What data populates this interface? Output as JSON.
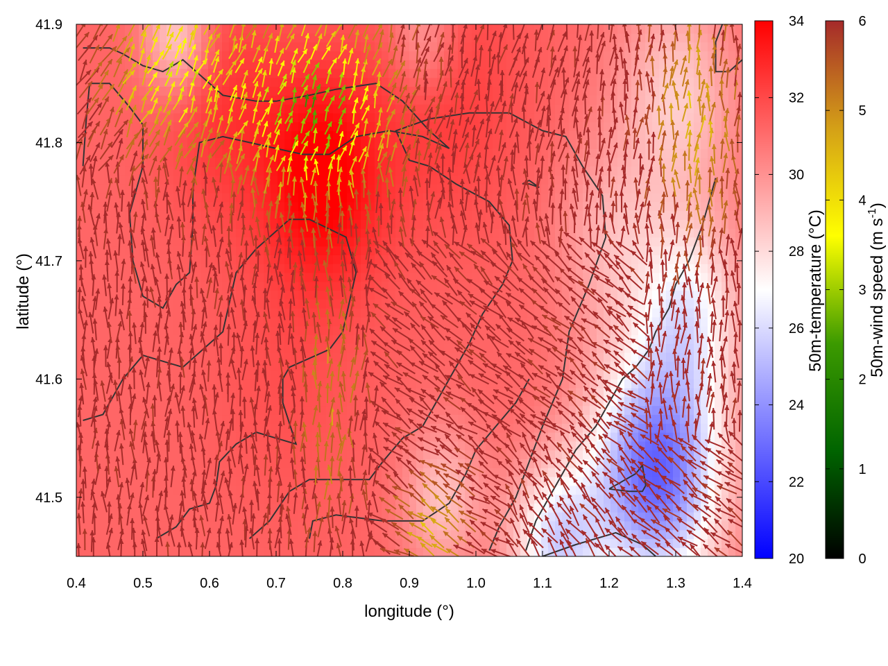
{
  "chart_data": {
    "type": "heatmap",
    "title": "",
    "xlabel": "longitude (°)",
    "ylabel": "latitude (°)",
    "xlim": [
      0.4,
      1.4
    ],
    "ylim": [
      41.45,
      41.9
    ],
    "x_ticks": [
      {
        "value": 0.4,
        "label": "0.4"
      },
      {
        "value": 0.5,
        "label": "0.5"
      },
      {
        "value": 0.6,
        "label": "0.6"
      },
      {
        "value": 0.7,
        "label": "0.7"
      },
      {
        "value": 0.8,
        "label": "0.8"
      },
      {
        "value": 0.9,
        "label": "0.9"
      },
      {
        "value": 1.0,
        "label": "1.0"
      },
      {
        "value": 1.1,
        "label": "1.1"
      },
      {
        "value": 1.2,
        "label": "1.2"
      },
      {
        "value": 1.3,
        "label": "1.3"
      },
      {
        "value": 1.4,
        "label": "1.4"
      }
    ],
    "y_ticks": [
      {
        "value": 41.5,
        "label": "41.5"
      },
      {
        "value": 41.6,
        "label": "41.6"
      },
      {
        "value": 41.7,
        "label": "41.7"
      },
      {
        "value": 41.8,
        "label": "41.8"
      },
      {
        "value": 41.9,
        "label": "41.9"
      }
    ],
    "temperature_colorbar": {
      "label": "50m-temperature (°C)",
      "range": [
        20,
        34
      ],
      "ticks": [
        {
          "value": 20,
          "label": "20"
        },
        {
          "value": 22,
          "label": "22"
        },
        {
          "value": 24,
          "label": "24"
        },
        {
          "value": 26,
          "label": "26"
        },
        {
          "value": 28,
          "label": "28"
        },
        {
          "value": 30,
          "label": "30"
        },
        {
          "value": 32,
          "label": "32"
        },
        {
          "value": 34,
          "label": "34"
        }
      ],
      "colors": [
        "#0000ff",
        "#ffffff",
        "#ff0000"
      ]
    },
    "wind_colorbar": {
      "label_main": "50m-wind speed (m s",
      "label_sup": "-1",
      "label_end": ")",
      "range": [
        0,
        6
      ],
      "ticks": [
        {
          "value": 0,
          "label": "0"
        },
        {
          "value": 1,
          "label": "1"
        },
        {
          "value": 2,
          "label": "2"
        },
        {
          "value": 3,
          "label": "3"
        },
        {
          "value": 4,
          "label": "4"
        },
        {
          "value": 5,
          "label": "5"
        },
        {
          "value": 6,
          "label": "6"
        }
      ],
      "colors": [
        "#000000",
        "#006400",
        "#3c9a00",
        "#ffff00",
        "#d4a017",
        "#a52a2a"
      ]
    },
    "temperature_field": {
      "base": 31.2,
      "features": [
        {
          "lon": 0.77,
          "lat": 41.77,
          "amp": 3.0,
          "r": 0.09
        },
        {
          "lon": 0.95,
          "lat": 41.84,
          "amp": 1.2,
          "r": 0.12
        },
        {
          "lon": 0.62,
          "lat": 41.83,
          "amp": 1.3,
          "r": 0.1
        },
        {
          "lon": 0.72,
          "lat": 41.6,
          "amp": 0.6,
          "r": 0.12
        },
        {
          "lon": 1.27,
          "lat": 41.52,
          "amp": -8.5,
          "r": 0.1
        },
        {
          "lon": 1.12,
          "lat": 41.46,
          "amp": -5.0,
          "r": 0.07
        },
        {
          "lon": 1.32,
          "lat": 41.66,
          "amp": -4.0,
          "r": 0.08
        },
        {
          "lon": 1.3,
          "lat": 41.84,
          "amp": -2.8,
          "r": 0.09
        },
        {
          "lon": 1.2,
          "lat": 41.72,
          "amp": -2.0,
          "r": 0.08
        },
        {
          "lon": 0.55,
          "lat": 41.89,
          "amp": -3.0,
          "r": 0.05
        },
        {
          "lon": 0.92,
          "lat": 41.89,
          "amp": -2.0,
          "r": 0.05
        },
        {
          "lon": 0.95,
          "lat": 41.5,
          "amp": -2.5,
          "r": 0.06
        }
      ]
    },
    "contours": [
      [
        [
          0.52,
          41.465
        ],
        [
          0.55,
          41.475
        ],
        [
          0.57,
          41.49
        ],
        [
          0.6,
          41.495
        ],
        [
          0.61,
          41.51
        ],
        [
          0.615,
          41.53
        ],
        [
          0.64,
          41.545
        ],
        [
          0.67,
          41.555
        ],
        [
          0.7,
          41.55
        ],
        [
          0.73,
          41.545
        ],
        [
          0.71,
          41.58
        ],
        [
          0.71,
          41.6
        ],
        [
          0.72,
          41.61
        ],
        [
          0.78,
          41.625
        ],
        [
          0.8,
          41.64
        ],
        [
          0.82,
          41.69
        ],
        [
          0.805,
          41.72
        ],
        [
          0.75,
          41.735
        ],
        [
          0.72,
          41.735
        ],
        [
          0.67,
          41.71
        ],
        [
          0.64,
          41.69
        ],
        [
          0.62,
          41.64
        ],
        [
          0.59,
          41.625
        ],
        [
          0.56,
          41.61
        ],
        [
          0.5,
          41.62
        ],
        [
          0.47,
          41.6
        ],
        [
          0.44,
          41.57
        ],
        [
          0.41,
          41.565
        ]
      ],
      [
        [
          0.41,
          41.78
        ],
        [
          0.415,
          41.82
        ],
        [
          0.42,
          41.85
        ],
        [
          0.45,
          41.85
        ],
        [
          0.48,
          41.83
        ],
        [
          0.5,
          41.815
        ],
        [
          0.5,
          41.78
        ],
        [
          0.48,
          41.74
        ],
        [
          0.485,
          41.7
        ],
        [
          0.5,
          41.67
        ],
        [
          0.53,
          41.66
        ],
        [
          0.55,
          41.68
        ],
        [
          0.57,
          41.69
        ],
        [
          0.575,
          41.73
        ],
        [
          0.575,
          41.76
        ],
        [
          0.585,
          41.8
        ],
        [
          0.62,
          41.805
        ],
        [
          0.66,
          41.8
        ],
        [
          0.7,
          41.795
        ],
        [
          0.74,
          41.79
        ],
        [
          0.78,
          41.79
        ],
        [
          0.82,
          41.805
        ],
        [
          0.87,
          41.81
        ],
        [
          0.92,
          41.805
        ],
        [
          0.96,
          41.795
        ],
        [
          0.93,
          41.81
        ],
        [
          0.89,
          41.835
        ],
        [
          0.85,
          41.85
        ],
        [
          0.79,
          41.845
        ],
        [
          0.75,
          41.84
        ],
        [
          0.7,
          41.835
        ],
        [
          0.67,
          41.835
        ],
        [
          0.62,
          41.84
        ],
        [
          0.58,
          41.86
        ],
        [
          0.56,
          41.87
        ],
        [
          0.53,
          41.86
        ],
        [
          0.5,
          41.865
        ],
        [
          0.47,
          41.875
        ],
        [
          0.45,
          41.88
        ],
        [
          0.41,
          41.88
        ]
      ],
      [
        [
          0.66,
          41.465
        ],
        [
          0.69,
          41.48
        ],
        [
          0.72,
          41.505
        ],
        [
          0.75,
          41.515
        ],
        [
          0.8,
          41.515
        ],
        [
          0.84,
          41.515
        ],
        [
          0.86,
          41.53
        ],
        [
          0.89,
          41.55
        ],
        [
          0.92,
          41.56
        ],
        [
          0.96,
          41.6
        ],
        [
          0.99,
          41.63
        ],
        [
          1.01,
          41.655
        ],
        [
          1.04,
          41.68
        ],
        [
          1.055,
          41.7
        ],
        [
          1.05,
          41.73
        ],
        [
          1.02,
          41.75
        ],
        [
          0.97,
          41.765
        ],
        [
          0.93,
          41.78
        ],
        [
          0.9,
          41.785
        ],
        [
          0.88,
          41.81
        ],
        [
          0.93,
          41.82
        ],
        [
          0.99,
          41.825
        ],
        [
          1.05,
          41.825
        ],
        [
          1.1,
          41.81
        ],
        [
          1.135,
          41.805
        ],
        [
          1.16,
          41.78
        ],
        [
          1.19,
          41.755
        ],
        [
          1.195,
          41.72
        ],
        [
          1.17,
          41.68
        ],
        [
          1.14,
          41.64
        ],
        [
          1.13,
          41.6
        ],
        [
          1.1,
          41.56
        ],
        [
          1.08,
          41.53
        ],
        [
          1.06,
          41.5
        ],
        [
          1.035,
          41.475
        ],
        [
          1.02,
          41.455
        ]
      ],
      [
        [
          0.75,
          41.465
        ],
        [
          0.755,
          41.48
        ],
        [
          0.79,
          41.485
        ],
        [
          0.86,
          41.48
        ],
        [
          0.92,
          41.48
        ],
        [
          0.96,
          41.495
        ],
        [
          0.985,
          41.52
        ],
        [
          1.0,
          41.54
        ],
        [
          1.03,
          41.56
        ],
        [
          1.06,
          41.58
        ],
        [
          1.08,
          41.6
        ]
      ],
      [
        [
          1.1,
          41.45
        ],
        [
          1.15,
          41.46
        ],
        [
          1.21,
          41.47
        ],
        [
          1.25,
          41.46
        ],
        [
          1.27,
          41.45
        ]
      ],
      [
        [
          1.2,
          41.507
        ],
        [
          1.24,
          41.52
        ],
        [
          1.25,
          41.527
        ],
        [
          1.255,
          41.51
        ],
        [
          1.25,
          41.505
        ],
        [
          1.23,
          41.505
        ],
        [
          1.2,
          41.507
        ]
      ],
      [
        [
          1.07,
          41.765
        ],
        [
          1.08,
          41.765
        ],
        [
          1.095,
          41.762
        ],
        [
          1.08,
          41.768
        ],
        [
          1.07,
          41.765
        ]
      ],
      [
        [
          1.37,
          41.9
        ],
        [
          1.36,
          41.885
        ],
        [
          1.36,
          41.86
        ],
        [
          1.38,
          41.86
        ],
        [
          1.4,
          41.87
        ]
      ],
      [
        [
          1.36,
          41.77
        ],
        [
          1.35,
          41.75
        ],
        [
          1.34,
          41.73
        ],
        [
          1.32,
          41.7
        ],
        [
          1.3,
          41.68
        ],
        [
          1.29,
          41.66
        ],
        [
          1.27,
          41.64
        ],
        [
          1.26,
          41.625
        ],
        [
          1.24,
          41.61
        ],
        [
          1.22,
          41.6
        ],
        [
          1.2,
          41.58
        ],
        [
          1.18,
          41.56
        ],
        [
          1.15,
          41.54
        ],
        [
          1.13,
          41.52
        ],
        [
          1.11,
          41.5
        ],
        [
          1.09,
          41.48
        ],
        [
          1.075,
          41.455
        ]
      ]
    ]
  }
}
